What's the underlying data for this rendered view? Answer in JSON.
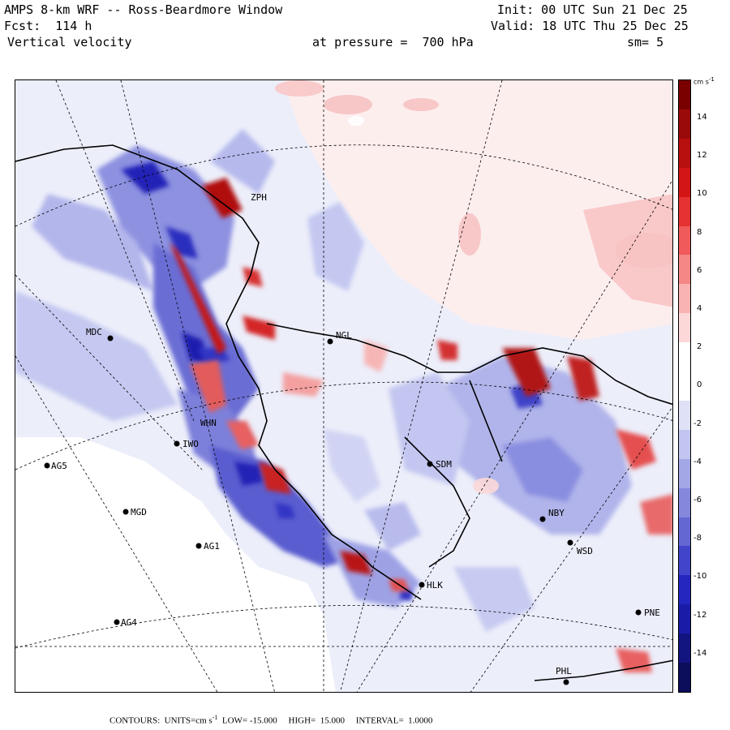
{
  "header": {
    "title": "AMPS 8-km WRF -- Ross-Beardmore Window",
    "forecast": "Fcst:  114 h",
    "variable": "Vertical velocity",
    "pressure_text": "at pressure =  700 hPa",
    "init": "Init: 00 UTC Sun 21 Dec 25",
    "valid": "Valid: 18 UTC Thu 25 Dec 25",
    "smoothing": "sm= 5"
  },
  "colorbar": {
    "units": "cm s",
    "units_exp": "-1",
    "ticks": [
      "14",
      "12",
      "10",
      "8",
      "6",
      "4",
      "2",
      "0",
      "-2",
      "-4",
      "-6",
      "-8",
      "-10",
      "-12",
      "-14"
    ],
    "colors": [
      "#7a0000",
      "#9b0a0a",
      "#b80f0f",
      "#d41515",
      "#e63232",
      "#f05a5a",
      "#f58787",
      "#f9b3b3",
      "#fcd8d8",
      "#ffffff",
      "#ffffff",
      "#dfe1f7",
      "#c2c5ef",
      "#a3a7e6",
      "#8487dc",
      "#6467d2",
      "#4245c9",
      "#2426c0",
      "#1a1ca8",
      "#121480",
      "#0c0e5c"
    ]
  },
  "stations": [
    {
      "code": "ZPH",
      "marker": false
    },
    {
      "code": "MDC",
      "marker": true
    },
    {
      "code": "NGL",
      "marker": true
    },
    {
      "code": "WHN",
      "marker": false
    },
    {
      "code": "IWO",
      "marker": true
    },
    {
      "code": "AG5",
      "marker": true
    },
    {
      "code": "SDM",
      "marker": true
    },
    {
      "code": "MGD",
      "marker": true
    },
    {
      "code": "NBY",
      "marker": true
    },
    {
      "code": "AG1",
      "marker": true
    },
    {
      "code": "WSD",
      "marker": true
    },
    {
      "code": "HLK",
      "marker": true
    },
    {
      "code": "AG4",
      "marker": true
    },
    {
      "code": "PNE",
      "marker": true
    },
    {
      "code": "PHL",
      "marker": true
    }
  ],
  "footer": {
    "contours": "CONTOURS:  UNITS=cm s",
    "contours_exp": "-1",
    "rest": "  LOW= -15.000     HIGH=  15.000     INTERVAL=  1.0000"
  }
}
